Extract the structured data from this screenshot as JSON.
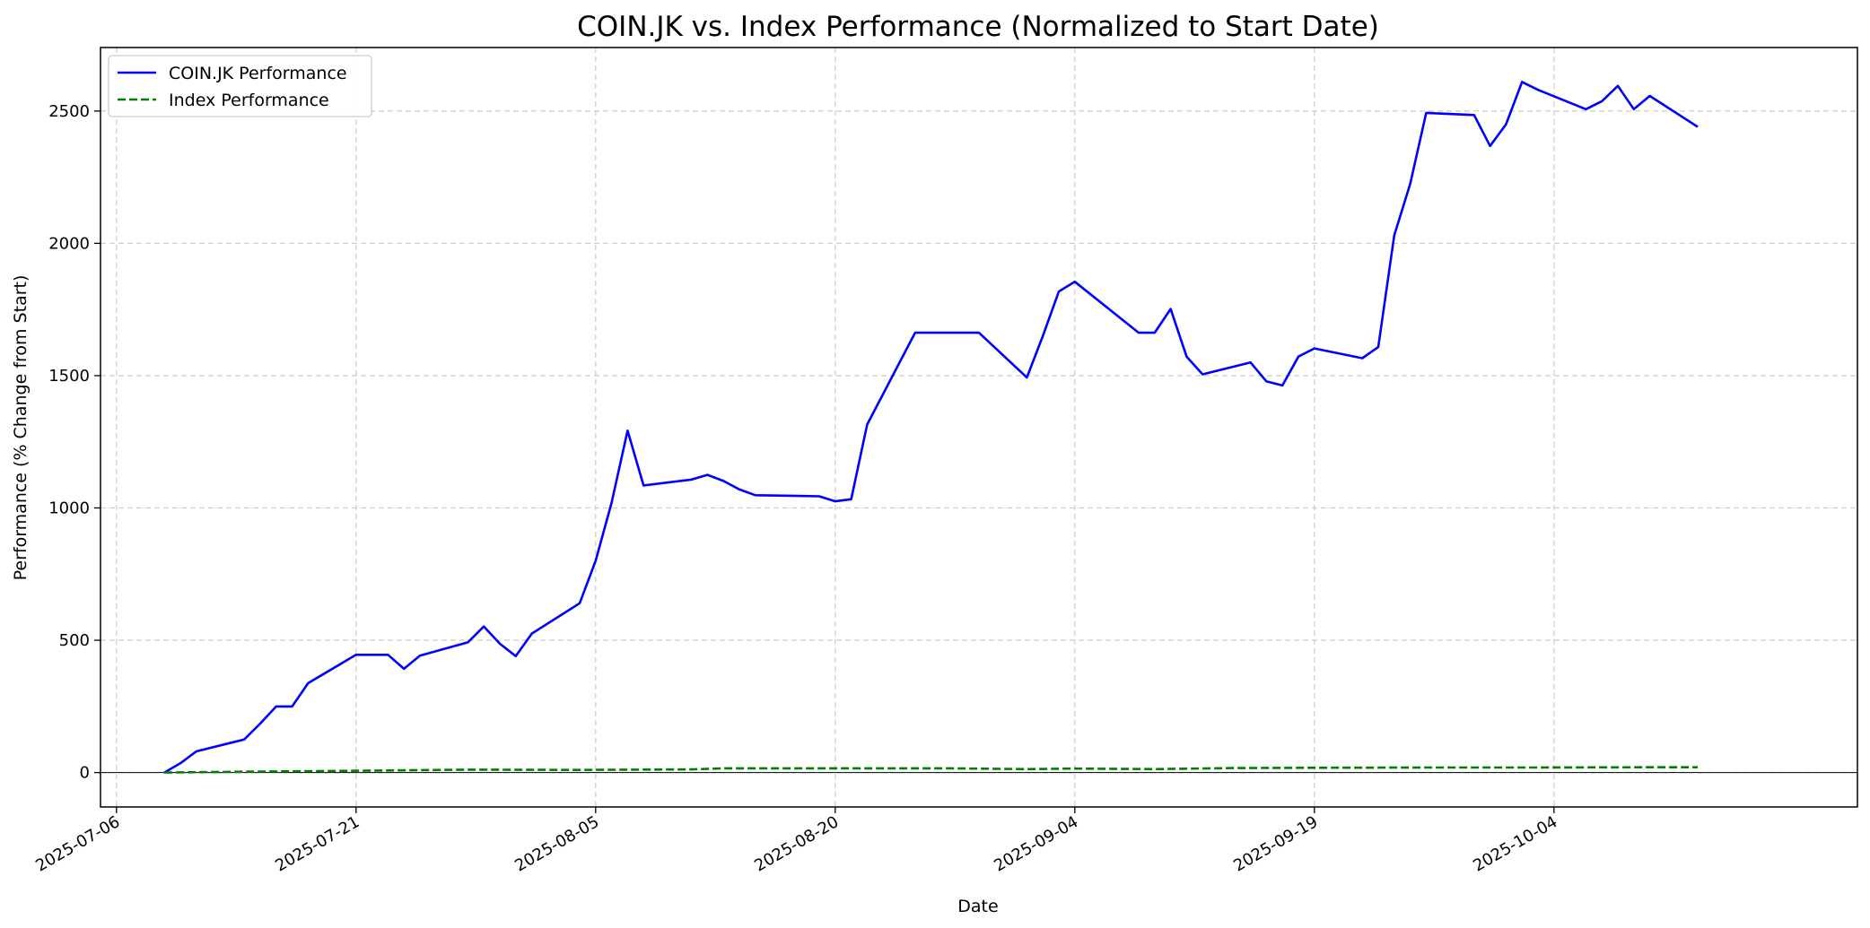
{
  "chart_data": {
    "type": "line",
    "title": "COIN.JK vs. Index Performance (Normalized to Start Date)",
    "xlabel": "Date",
    "ylabel": "Performance (% Change from Start)",
    "xlim": [
      "2025-07-05",
      "2025-10-23"
    ],
    "ylim": [
      -130,
      2740
    ],
    "x_ticks": [
      "2025-07-06",
      "2025-07-21",
      "2025-08-05",
      "2025-08-20",
      "2025-09-04",
      "2025-09-19",
      "2025-10-04"
    ],
    "y_ticks": [
      0,
      500,
      1000,
      1500,
      2000,
      2500
    ],
    "grid": true,
    "legend_position": "top-left",
    "series": [
      {
        "name": "COIN.JK Performance",
        "color": "#0000ff",
        "style": "solid",
        "x": [
          "2025-07-09",
          "2025-07-10",
          "2025-07-11",
          "2025-07-14",
          "2025-07-15",
          "2025-07-16",
          "2025-07-17",
          "2025-07-18",
          "2025-07-21",
          "2025-07-23",
          "2025-07-24",
          "2025-07-25",
          "2025-07-28",
          "2025-07-29",
          "2025-07-30",
          "2025-07-31",
          "2025-08-01",
          "2025-08-04",
          "2025-08-05",
          "2025-08-06",
          "2025-08-07",
          "2025-08-08",
          "2025-08-11",
          "2025-08-12",
          "2025-08-13",
          "2025-08-14",
          "2025-08-15",
          "2025-08-19",
          "2025-08-20",
          "2025-08-21",
          "2025-08-22",
          "2025-08-25",
          "2025-08-29",
          "2025-09-01",
          "2025-09-02",
          "2025-09-03",
          "2025-09-04",
          "2025-09-08",
          "2025-09-09",
          "2025-09-10",
          "2025-09-11",
          "2025-09-12",
          "2025-09-15",
          "2025-09-16",
          "2025-09-17",
          "2025-09-18",
          "2025-09-19",
          "2025-09-22",
          "2025-09-23",
          "2025-09-24",
          "2025-09-25",
          "2025-09-26",
          "2025-09-29",
          "2025-09-30",
          "2025-10-01",
          "2025-10-02",
          "2025-10-03",
          "2025-10-06",
          "2025-10-07",
          "2025-10-08",
          "2025-10-09",
          "2025-10-10",
          "2025-10-13"
        ],
        "values": [
          0,
          35,
          80,
          125,
          185,
          250,
          250,
          338,
          445,
          445,
          392,
          442,
          492,
          552,
          487,
          440,
          525,
          640,
          800,
          1020,
          1292,
          1085,
          1107,
          1125,
          1102,
          1070,
          1048,
          1044,
          1025,
          1033,
          1315,
          1662,
          1662,
          1493,
          1650,
          1818,
          1855,
          1662,
          1662,
          1752,
          1572,
          1505,
          1550,
          1478,
          1463,
          1572,
          1603,
          1566,
          1608,
          2030,
          2225,
          2493,
          2485,
          2368,
          2450,
          2610,
          2580,
          2507,
          2537,
          2595,
          2507,
          2557,
          2440
        ]
      },
      {
        "name": "Index Performance",
        "color": "#008000",
        "style": "dashed",
        "x": [
          "2025-07-09",
          "2025-07-14",
          "2025-07-21",
          "2025-07-28",
          "2025-08-04",
          "2025-08-11",
          "2025-08-13",
          "2025-08-20",
          "2025-08-27",
          "2025-09-01",
          "2025-09-04",
          "2025-09-09",
          "2025-09-14",
          "2025-09-19",
          "2025-09-26",
          "2025-10-03",
          "2025-10-10",
          "2025-10-13"
        ],
        "values": [
          0,
          3,
          7,
          11,
          10,
          12,
          16,
          16,
          16,
          13,
          15,
          13,
          17,
          18,
          19,
          19,
          20,
          20
        ]
      }
    ]
  }
}
